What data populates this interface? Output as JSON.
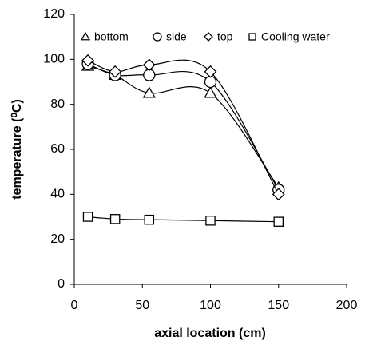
{
  "chart_data": {
    "type": "scatter",
    "x_label": "axial location (cm)",
    "y_label": "temperature (⁰C)",
    "xlim": [
      0,
      200
    ],
    "xticks": [
      0,
      50,
      100,
      150,
      200
    ],
    "ylim": [
      0,
      120
    ],
    "yticks": [
      0,
      20,
      40,
      60,
      80,
      100,
      120
    ],
    "smooth_lines": true,
    "series": [
      {
        "name": "bottom",
        "marker": "triangle",
        "color": "#000000",
        "x": [
          10,
          30,
          55,
          100,
          150
        ],
        "values": [
          97,
          93,
          85,
          85,
          43
        ]
      },
      {
        "name": "side",
        "marker": "circle",
        "color": "#000000",
        "x": [
          10,
          30,
          55,
          100,
          150
        ],
        "values": [
          98,
          93,
          93,
          90,
          42
        ]
      },
      {
        "name": "top",
        "marker": "diamond",
        "color": "#000000",
        "x": [
          10,
          30,
          55,
          100,
          150
        ],
        "values": [
          99.5,
          94.5,
          97.5,
          94.5,
          40
        ]
      },
      {
        "name": "Cooling water",
        "marker": "square",
        "color": "#000000",
        "x": [
          10,
          30,
          55,
          100,
          150
        ],
        "values": [
          30,
          29,
          28.7,
          28.3,
          27.8
        ]
      }
    ]
  }
}
